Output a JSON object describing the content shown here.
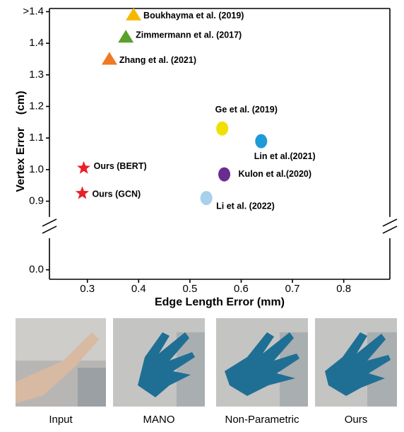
{
  "chart_data": {
    "type": "scatter",
    "xlabel": "Edge Length Error (mm)",
    "ylabel": "Vertex Error    (cm)",
    "xlim": [
      0.226,
      0.89
    ],
    "xticks": [
      0.3,
      0.4,
      0.5,
      0.6,
      0.7,
      0.8
    ],
    "ylim": [
      -0.03,
      1.51
    ],
    "y_break": [
      0.1,
      0.85
    ],
    "yticks": [
      {
        "value": 0,
        "label": "0.0"
      },
      0.9,
      {
        "value": 1,
        "label": "1.0"
      },
      1.1,
      1.2,
      1.3,
      1.4,
      {
        "value": 1.5,
        "label": ">1.4"
      }
    ],
    "series": [
      {
        "name": "Boukhayma et al. (2019)",
        "color": "#f5b800",
        "marker": "triangle",
        "x": [
          0.39
        ],
        "values": [
          1.49
        ]
      },
      {
        "name": "Zimmermann et al. (2017)",
        "color": "#5aa02c",
        "marker": "triangle",
        "x": [
          0.375
        ],
        "values": [
          1.42
        ]
      },
      {
        "name": "Zhang et al. (2021)",
        "color": "#f07820",
        "marker": "triangle",
        "x": [
          0.343
        ],
        "values": [
          1.35
        ]
      },
      {
        "name": "Ge et al. (2019)",
        "color": "#f0e000",
        "marker": "ellipse",
        "x": [
          0.563
        ],
        "values": [
          1.13
        ]
      },
      {
        "name": "Lin et al.(2021)",
        "color": "#1e9ad6",
        "marker": "ellipse",
        "x": [
          0.639
        ],
        "values": [
          1.09
        ]
      },
      {
        "name": "Kulon et al.(2020)",
        "color": "#6a2c91",
        "marker": "ellipse",
        "x": [
          0.567
        ],
        "values": [
          0.985
        ]
      },
      {
        "name": "Li et al. (2022)",
        "color": "#a8d0ea",
        "marker": "ellipse",
        "x": [
          0.532
        ],
        "values": [
          0.91
        ]
      },
      {
        "name": "Ours (BERT)",
        "color": "#e8202a",
        "marker": "star",
        "x": [
          0.293
        ],
        "values": [
          1.005
        ]
      },
      {
        "name": "Ours (GCN)",
        "color": "#e8202a",
        "marker": "star",
        "x": [
          0.29
        ],
        "values": [
          0.925
        ]
      }
    ]
  },
  "figure_captions": [
    "Input",
    "MANO",
    "Non-Parametric",
    "Ours"
  ]
}
